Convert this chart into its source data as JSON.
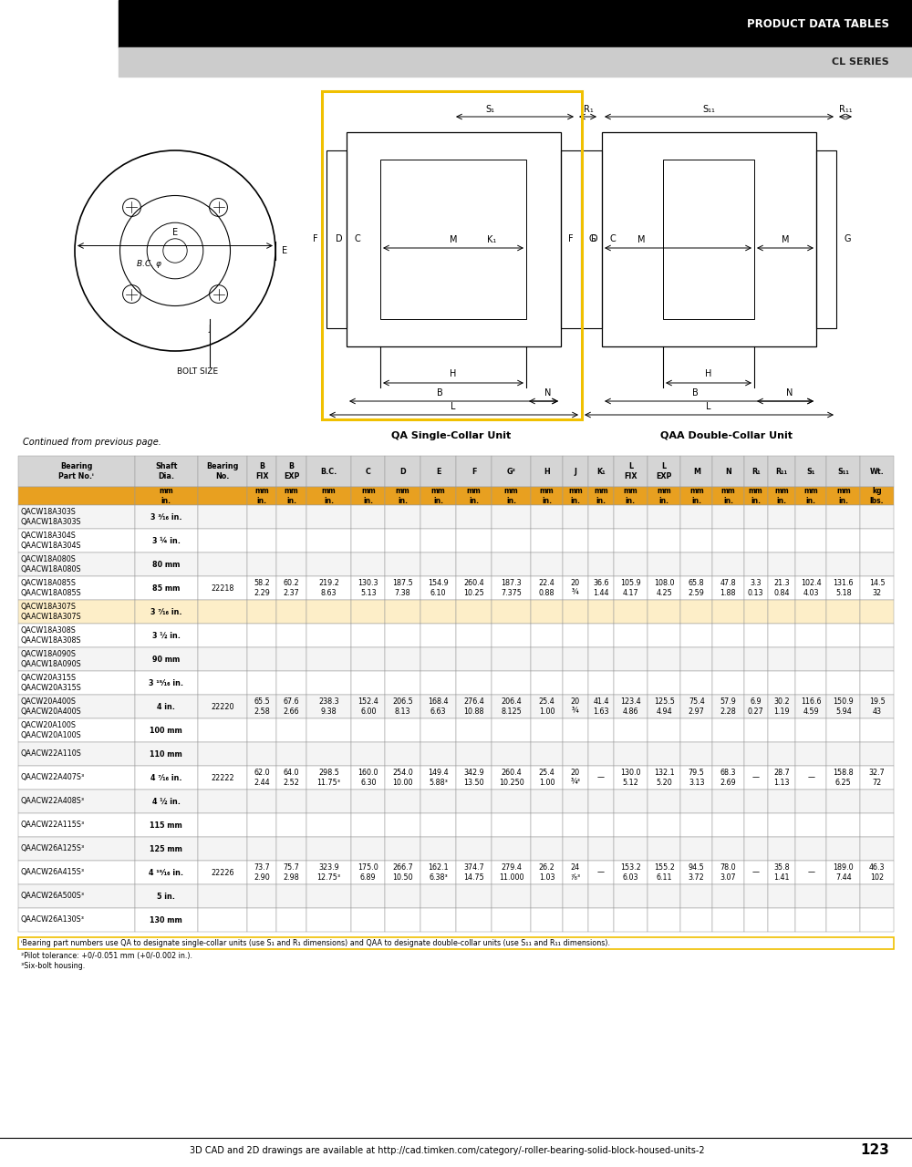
{
  "header_black_text": "PRODUCT DATA TABLES",
  "header_gray_text": "CL SERIES",
  "continued_text": "Continued from previous page.",
  "rows": [
    {
      "parts": "QACW18A303S\nQAACW18A303S",
      "shaft": "3 ³⁄₁₆ in.",
      "bearing": "",
      "b_fix": "",
      "b_exp": "",
      "bc": "",
      "c": "",
      "d": "",
      "e": "",
      "f": "",
      "g": "",
      "h": "",
      "j": "",
      "ka": "",
      "l_fix": "",
      "l_exp": "",
      "m": "",
      "n": "",
      "ra": "",
      "raa": "",
      "sa": "",
      "saa": "",
      "wt": "",
      "highlight": false
    },
    {
      "parts": "QACW18A304S\nQAACW18A304S",
      "shaft": "3 ¼ in.",
      "bearing": "",
      "b_fix": "",
      "b_exp": "",
      "bc": "",
      "c": "",
      "d": "",
      "e": "",
      "f": "",
      "g": "",
      "h": "",
      "j": "",
      "ka": "",
      "l_fix": "",
      "l_exp": "",
      "m": "",
      "n": "",
      "ra": "",
      "raa": "",
      "sa": "",
      "saa": "",
      "wt": "",
      "highlight": false
    },
    {
      "parts": "QACW18A080S\nQAACW18A080S",
      "shaft": "80 mm",
      "bearing": "",
      "b_fix": "",
      "b_exp": "",
      "bc": "",
      "c": "",
      "d": "",
      "e": "",
      "f": "",
      "g": "",
      "h": "",
      "j": "",
      "ka": "",
      "l_fix": "",
      "l_exp": "",
      "m": "",
      "n": "",
      "ra": "",
      "raa": "",
      "sa": "",
      "saa": "",
      "wt": "",
      "highlight": false
    },
    {
      "parts": "QACW18A085S\nQAACW18A085S",
      "shaft": "85 mm",
      "bearing": "22218",
      "b_fix": "58.2\n2.29",
      "b_exp": "60.2\n2.37",
      "bc": "219.2\n8.63",
      "c": "130.3\n5.13",
      "d": "187.5\n7.38",
      "e": "154.9\n6.10",
      "f": "260.4\n10.25",
      "g": "187.3\n7.375",
      "h": "22.4\n0.88",
      "j": "20\n¾",
      "ka": "36.6\n1.44",
      "l_fix": "105.9\n4.17",
      "l_exp": "108.0\n4.25",
      "m": "65.8\n2.59",
      "n": "47.8\n1.88",
      "ra": "3.3\n0.13",
      "raa": "21.3\n0.84",
      "sa": "102.4\n4.03",
      "saa": "131.6\n5.18",
      "wt": "14.5\n32",
      "highlight": false
    },
    {
      "parts": "QACW18A307S\nQAACW18A307S",
      "shaft": "3 ⁷⁄₁₆ in.",
      "bearing": "",
      "b_fix": "",
      "b_exp": "",
      "bc": "",
      "c": "",
      "d": "",
      "e": "",
      "f": "",
      "g": "",
      "h": "",
      "j": "",
      "ka": "",
      "l_fix": "",
      "l_exp": "",
      "m": "",
      "n": "",
      "ra": "",
      "raa": "",
      "sa": "",
      "saa": "",
      "wt": "",
      "highlight": true
    },
    {
      "parts": "QACW18A308S\nQAACW18A308S",
      "shaft": "3 ½ in.",
      "bearing": "",
      "b_fix": "",
      "b_exp": "",
      "bc": "",
      "c": "",
      "d": "",
      "e": "",
      "f": "",
      "g": "",
      "h": "",
      "j": "",
      "ka": "",
      "l_fix": "",
      "l_exp": "",
      "m": "",
      "n": "",
      "ra": "",
      "raa": "",
      "sa": "",
      "saa": "",
      "wt": "",
      "highlight": false
    },
    {
      "parts": "QACW18A090S\nQAACW18A090S",
      "shaft": "90 mm",
      "bearing": "",
      "b_fix": "",
      "b_exp": "",
      "bc": "",
      "c": "",
      "d": "",
      "e": "",
      "f": "",
      "g": "",
      "h": "",
      "j": "",
      "ka": "",
      "l_fix": "",
      "l_exp": "",
      "m": "",
      "n": "",
      "ra": "",
      "raa": "",
      "sa": "",
      "saa": "",
      "wt": "",
      "highlight": false
    },
    {
      "parts": "QACW20A315S\nQAACW20A315S",
      "shaft": "3 ¹⁵⁄₁₆ in.",
      "bearing": "",
      "b_fix": "",
      "b_exp": "",
      "bc": "",
      "c": "",
      "d": "",
      "e": "",
      "f": "",
      "g": "",
      "h": "",
      "j": "",
      "ka": "",
      "l_fix": "",
      "l_exp": "",
      "m": "",
      "n": "",
      "ra": "",
      "raa": "",
      "sa": "",
      "saa": "",
      "wt": "",
      "highlight": false
    },
    {
      "parts": "QACW20A400S\nQAACW20A400S",
      "shaft": "4 in.",
      "bearing": "22220",
      "b_fix": "65.5\n2.58",
      "b_exp": "67.6\n2.66",
      "bc": "238.3\n9.38",
      "c": "152.4\n6.00",
      "d": "206.5\n8.13",
      "e": "168.4\n6.63",
      "f": "276.4\n10.88",
      "g": "206.4\n8.125",
      "h": "25.4\n1.00",
      "j": "20\n¾",
      "ka": "41.4\n1.63",
      "l_fix": "123.4\n4.86",
      "l_exp": "125.5\n4.94",
      "m": "75.4\n2.97",
      "n": "57.9\n2.28",
      "ra": "6.9\n0.27",
      "raa": "30.2\n1.19",
      "sa": "116.6\n4.59",
      "saa": "150.9\n5.94",
      "wt": "19.5\n43",
      "highlight": false
    },
    {
      "parts": "QACW20A100S\nQAACW20A100S",
      "shaft": "100 mm",
      "bearing": "",
      "b_fix": "",
      "b_exp": "",
      "bc": "",
      "c": "",
      "d": "",
      "e": "",
      "f": "",
      "g": "",
      "h": "",
      "j": "",
      "ka": "",
      "l_fix": "",
      "l_exp": "",
      "m": "",
      "n": "",
      "ra": "",
      "raa": "",
      "sa": "",
      "saa": "",
      "wt": "",
      "highlight": false
    },
    {
      "parts": "QAACW22A110S",
      "shaft": "110 mm",
      "bearing": "",
      "b_fix": "",
      "b_exp": "",
      "bc": "",
      "c": "",
      "d": "",
      "e": "",
      "f": "",
      "g": "",
      "h": "",
      "j": "",
      "ka": "",
      "l_fix": "",
      "l_exp": "",
      "m": "",
      "n": "",
      "ra": "",
      "raa": "",
      "sa": "",
      "saa": "",
      "wt": "",
      "highlight": false
    },
    {
      "parts": "QAACW22A407S³",
      "shaft": "4 ⁷⁄₁₆ in.",
      "bearing": "22222",
      "b_fix": "62.0\n2.44",
      "b_exp": "64.0\n2.52",
      "bc": "298.5\n11.75³",
      "c": "160.0\n6.30",
      "d": "254.0\n10.00",
      "e": "149.4\n5.88³",
      "f": "342.9\n13.50",
      "g": "260.4\n10.250",
      "h": "25.4\n1.00",
      "j": "20\n¾³",
      "ka": "—",
      "l_fix": "130.0\n5.12",
      "l_exp": "132.1\n5.20",
      "m": "79.5\n3.13",
      "n": "68.3\n2.69",
      "ra": "—",
      "raa": "28.7\n1.13",
      "sa": "—",
      "saa": "158.8\n6.25",
      "wt": "32.7\n72",
      "highlight": false
    },
    {
      "parts": "QAACW22A408S³",
      "shaft": "4 ½ in.",
      "bearing": "",
      "b_fix": "",
      "b_exp": "",
      "bc": "",
      "c": "",
      "d": "",
      "e": "",
      "f": "",
      "g": "",
      "h": "",
      "j": "",
      "ka": "",
      "l_fix": "",
      "l_exp": "",
      "m": "",
      "n": "",
      "ra": "",
      "raa": "",
      "sa": "",
      "saa": "",
      "wt": "",
      "highlight": false
    },
    {
      "parts": "QAACW22A115S³",
      "shaft": "115 mm",
      "bearing": "",
      "b_fix": "",
      "b_exp": "",
      "bc": "",
      "c": "",
      "d": "",
      "e": "",
      "f": "",
      "g": "",
      "h": "",
      "j": "",
      "ka": "",
      "l_fix": "",
      "l_exp": "",
      "m": "",
      "n": "",
      "ra": "",
      "raa": "",
      "sa": "",
      "saa": "",
      "wt": "",
      "highlight": false
    },
    {
      "parts": "QAACW26A125S³",
      "shaft": "125 mm",
      "bearing": "",
      "b_fix": "",
      "b_exp": "",
      "bc": "",
      "c": "",
      "d": "",
      "e": "",
      "f": "",
      "g": "",
      "h": "",
      "j": "",
      "ka": "",
      "l_fix": "",
      "l_exp": "",
      "m": "",
      "n": "",
      "ra": "",
      "raa": "",
      "sa": "",
      "saa": "",
      "wt": "",
      "highlight": false
    },
    {
      "parts": "QAACW26A415S³",
      "shaft": "4 ¹⁵⁄₁₆ in.",
      "bearing": "22226",
      "b_fix": "73.7\n2.90",
      "b_exp": "75.7\n2.98",
      "bc": "323.9\n12.75³",
      "c": "175.0\n6.89",
      "d": "266.7\n10.50",
      "e": "162.1\n6.38³",
      "f": "374.7\n14.75",
      "g": "279.4\n11.000",
      "h": "26.2\n1.03",
      "j": "24\n⁷⁄₈³",
      "ka": "—",
      "l_fix": "153.2\n6.03",
      "l_exp": "155.2\n6.11",
      "m": "94.5\n3.72",
      "n": "78.0\n3.07",
      "ra": "—",
      "raa": "35.8\n1.41",
      "sa": "—",
      "saa": "189.0\n7.44",
      "wt": "46.3\n102",
      "highlight": false
    },
    {
      "parts": "QAACW26A500S³",
      "shaft": "5 in.",
      "bearing": "",
      "b_fix": "",
      "b_exp": "",
      "bc": "",
      "c": "",
      "d": "",
      "e": "",
      "f": "",
      "g": "",
      "h": "",
      "j": "",
      "ka": "",
      "l_fix": "",
      "l_exp": "",
      "m": "",
      "n": "",
      "ra": "",
      "raa": "",
      "sa": "",
      "saa": "",
      "wt": "",
      "highlight": false
    },
    {
      "parts": "QAACW26A130S³",
      "shaft": "130 mm",
      "bearing": "",
      "b_fix": "",
      "b_exp": "",
      "bc": "",
      "c": "",
      "d": "",
      "e": "",
      "f": "",
      "g": "",
      "h": "",
      "j": "",
      "ka": "",
      "l_fix": "",
      "l_exp": "",
      "m": "",
      "n": "",
      "ra": "",
      "raa": "",
      "sa": "",
      "saa": "",
      "wt": "",
      "highlight": false
    }
  ],
  "footnotes": [
    "ⁱBearing part numbers use QA to designate single-collar units (use S₁ and R₁ dimensions) and QAA to designate double-collar units (use S₁₁ and R₁₁ dimensions).",
    "²Pilot tolerance: +0/-0.051 mm (+0/-0.002 in.).",
    "³Six-bolt housing."
  ],
  "bottom_text": "3D CAD and 2D drawings are available at http://cad.timken.com/category/-roller-bearing-solid-block-housed-units-2",
  "page_number": "123",
  "orange_color": "#E8A020",
  "header_bg_color": "#000000",
  "subheader_bg_color": "#CCCCCC",
  "col_header_bg": "#D8D8D8",
  "highlight_row_color": "#FDEEC8"
}
